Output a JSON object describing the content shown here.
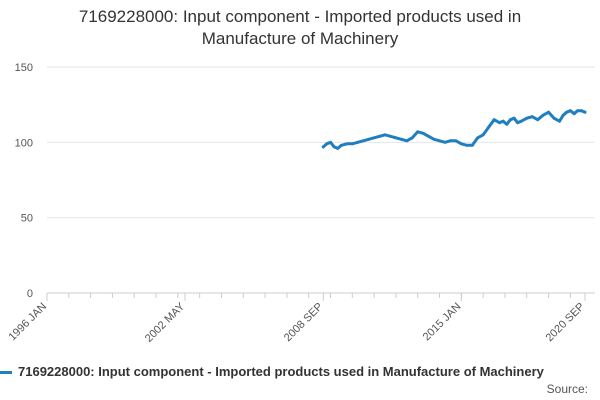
{
  "title_line1": "7169228000: Input component - Imported products used in",
  "title_line2": "Manufacture of Machinery",
  "legend_label": "7169228000: Input component - Imported products used in Manufacture of Machinery",
  "source_label": "Source:",
  "colors": {
    "series": "#1f7fc0",
    "grid": "#e6e6e6",
    "axis": "#cccccc"
  },
  "chart_data": {
    "type": "line",
    "title": "7169228000: Input component - Imported products used in Manufacture of Machinery",
    "xlabel": "",
    "ylabel": "",
    "ylim": [
      0,
      150
    ],
    "yticks": [
      0,
      50,
      100,
      150
    ],
    "xlim": [
      1996.0,
      2020.67
    ],
    "xtick_labels": [
      {
        "label": "1996 JAN",
        "value": 1996.0
      },
      {
        "label": "2002 MAY",
        "value": 2002.33
      },
      {
        "label": "2008 SEP",
        "value": 2008.67
      },
      {
        "label": "2015 JAN",
        "value": 2015.0
      },
      {
        "label": "2020 SEP",
        "value": 2020.67
      }
    ],
    "series": [
      {
        "name": "7169228000: Input component - Imported products used in Manufacture of Machinery",
        "x": [
          2008.67,
          2008.83,
          2009.0,
          2009.17,
          2009.33,
          2009.5,
          2009.75,
          2010.0,
          2010.25,
          2010.5,
          2010.75,
          2011.0,
          2011.25,
          2011.5,
          2011.75,
          2012.0,
          2012.25,
          2012.5,
          2012.75,
          2013.0,
          2013.25,
          2013.5,
          2013.75,
          2014.0,
          2014.25,
          2014.5,
          2014.75,
          2015.0,
          2015.25,
          2015.5,
          2015.75,
          2016.0,
          2016.25,
          2016.5,
          2016.75,
          2016.92,
          2017.08,
          2017.25,
          2017.42,
          2017.58,
          2017.75,
          2018.0,
          2018.25,
          2018.5,
          2018.75,
          2019.0,
          2019.25,
          2019.5,
          2019.67,
          2019.83,
          2020.0,
          2020.17,
          2020.33,
          2020.5,
          2020.67
        ],
        "values": [
          97,
          99,
          100,
          97,
          96,
          98,
          99,
          99,
          100,
          101,
          102,
          103,
          104,
          105,
          104,
          103,
          102,
          101,
          103,
          107,
          106,
          104,
          102,
          101,
          100,
          101,
          101,
          99,
          98,
          98,
          103,
          105,
          110,
          115,
          113,
          114,
          112,
          115,
          116,
          113,
          114,
          116,
          117,
          115,
          118,
          120,
          116,
          114,
          118,
          120,
          121,
          119,
          121,
          121,
          120
        ]
      }
    ]
  }
}
